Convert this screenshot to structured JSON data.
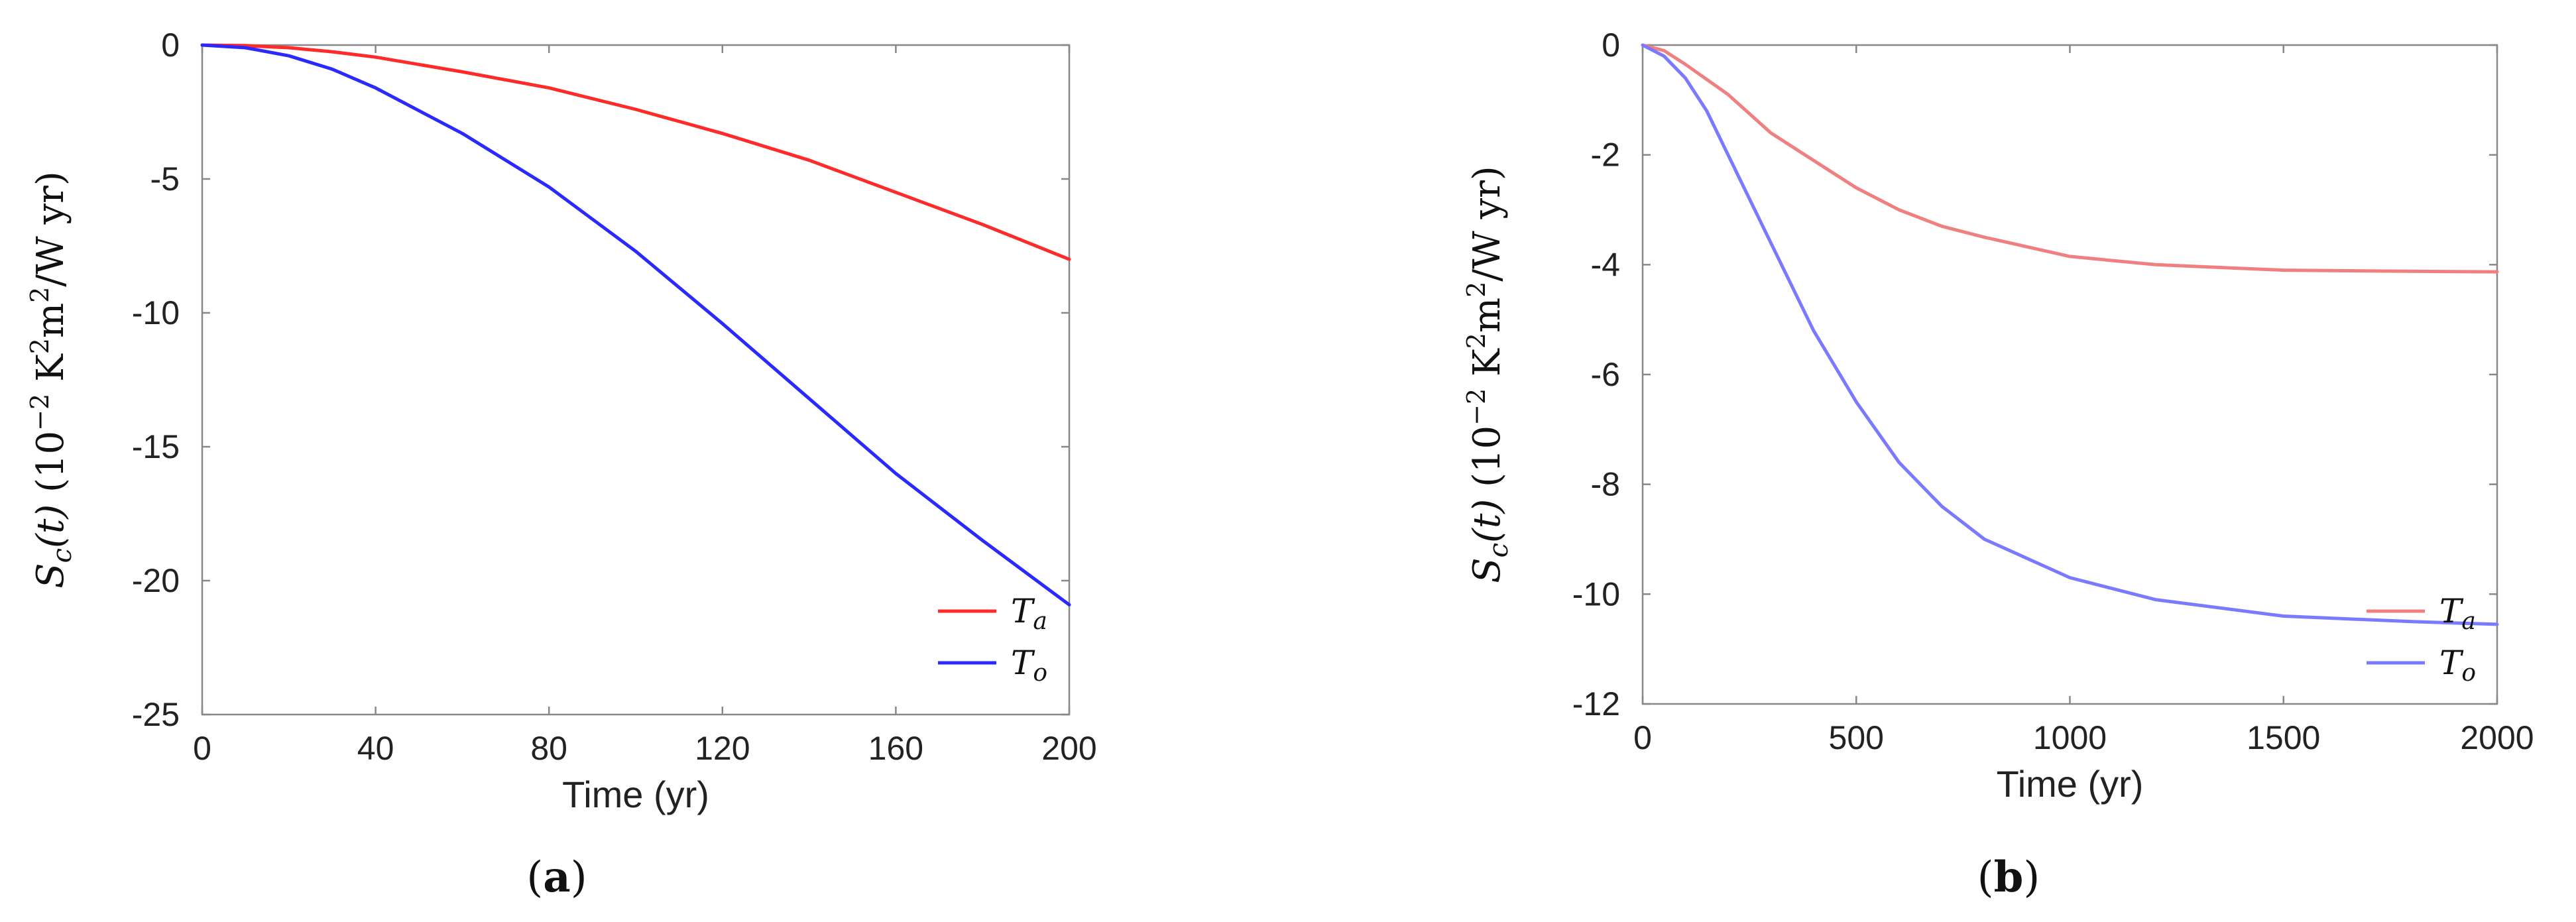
{
  "chart_data": [
    {
      "id": "a",
      "type": "line",
      "caption_open": "(",
      "caption_letter": "a",
      "caption_close": ")",
      "xlabel": "Time (yr)",
      "ylabel": "S_c(t) (10^-2 K^2m^2/W yr)",
      "ylabel_parts": {
        "s": "S",
        "sub": "c",
        "t": "(t)",
        "base": " (10",
        "exp1": "−2",
        "unit": " K",
        "exp2": "2",
        "m": "m",
        "exp3": "2",
        "tail": "/W yr)"
      },
      "xlim": [
        0,
        200
      ],
      "ylim": [
        -25,
        0
      ],
      "xticks": [
        0,
        40,
        80,
        120,
        160,
        200
      ],
      "yticks": [
        0,
        -5,
        -10,
        -15,
        -20,
        -25
      ],
      "xtick_labels": [
        "0",
        "40",
        "80",
        "120",
        "160",
        "200"
      ],
      "ytick_labels": [
        "0",
        "-5",
        "-10",
        "-15",
        "-20",
        "-25"
      ],
      "legend_position": "bottom-right",
      "series": [
        {
          "name": "T_a",
          "legend_main": "T",
          "legend_sub": "a",
          "color": "#ff2a2a",
          "x": [
            0,
            10,
            20,
            30,
            40,
            60,
            80,
            100,
            120,
            140,
            160,
            180,
            200
          ],
          "y": [
            0,
            -0.02,
            -0.1,
            -0.25,
            -0.45,
            -1.0,
            -1.6,
            -2.4,
            -3.3,
            -4.3,
            -5.5,
            -6.7,
            -8.0
          ]
        },
        {
          "name": "T_o",
          "legend_main": "T",
          "legend_sub": "o",
          "color": "#2a2aff",
          "x": [
            0,
            10,
            20,
            30,
            40,
            60,
            80,
            100,
            120,
            140,
            160,
            180,
            200
          ],
          "y": [
            0,
            -0.1,
            -0.4,
            -0.9,
            -1.6,
            -3.3,
            -5.3,
            -7.7,
            -10.4,
            -13.2,
            -16.0,
            -18.5,
            -20.9
          ]
        }
      ]
    },
    {
      "id": "b",
      "type": "line",
      "caption_open": "(",
      "caption_letter": "b",
      "caption_close": ")",
      "xlabel": "Time (yr)",
      "ylabel": "S_c(t) (10^-2 K^2m^2/W yr)",
      "ylabel_parts": {
        "s": "S",
        "sub": "c",
        "t": "(t)",
        "base": " (10",
        "exp1": "−2",
        "unit": " K",
        "exp2": "2",
        "m": "m",
        "exp3": "2",
        "tail": "/W yr)"
      },
      "xlim": [
        0,
        2000
      ],
      "ylim": [
        -12,
        0
      ],
      "xticks": [
        0,
        500,
        1000,
        1500,
        2000
      ],
      "yticks": [
        0,
        -2,
        -4,
        -6,
        -8,
        -10,
        -12
      ],
      "xtick_labels": [
        "0",
        "500",
        "1000",
        "1500",
        "2000"
      ],
      "ytick_labels": [
        "0",
        "-2",
        "-4",
        "-6",
        "-8",
        "-10",
        "-12"
      ],
      "legend_position": "bottom-right",
      "series": [
        {
          "name": "T_a",
          "legend_main": "T",
          "legend_sub": "a",
          "color": "#f08080",
          "x": [
            0,
            50,
            100,
            200,
            300,
            400,
            500,
            600,
            700,
            800,
            1000,
            1200,
            1500,
            1800,
            2000
          ],
          "y": [
            0,
            -0.1,
            -0.35,
            -0.9,
            -1.6,
            -2.1,
            -2.6,
            -3.0,
            -3.3,
            -3.5,
            -3.85,
            -4.0,
            -4.1,
            -4.12,
            -4.13
          ]
        },
        {
          "name": "T_o",
          "legend_main": "T",
          "legend_sub": "o",
          "color": "#7a7aff",
          "x": [
            0,
            50,
            100,
            150,
            200,
            300,
            400,
            500,
            600,
            700,
            800,
            1000,
            1200,
            1500,
            1800,
            2000
          ],
          "y": [
            0,
            -0.2,
            -0.6,
            -1.2,
            -2.0,
            -3.6,
            -5.2,
            -6.5,
            -7.6,
            -8.4,
            -9.0,
            -9.7,
            -10.1,
            -10.4,
            -10.5,
            -10.55
          ]
        }
      ]
    }
  ]
}
